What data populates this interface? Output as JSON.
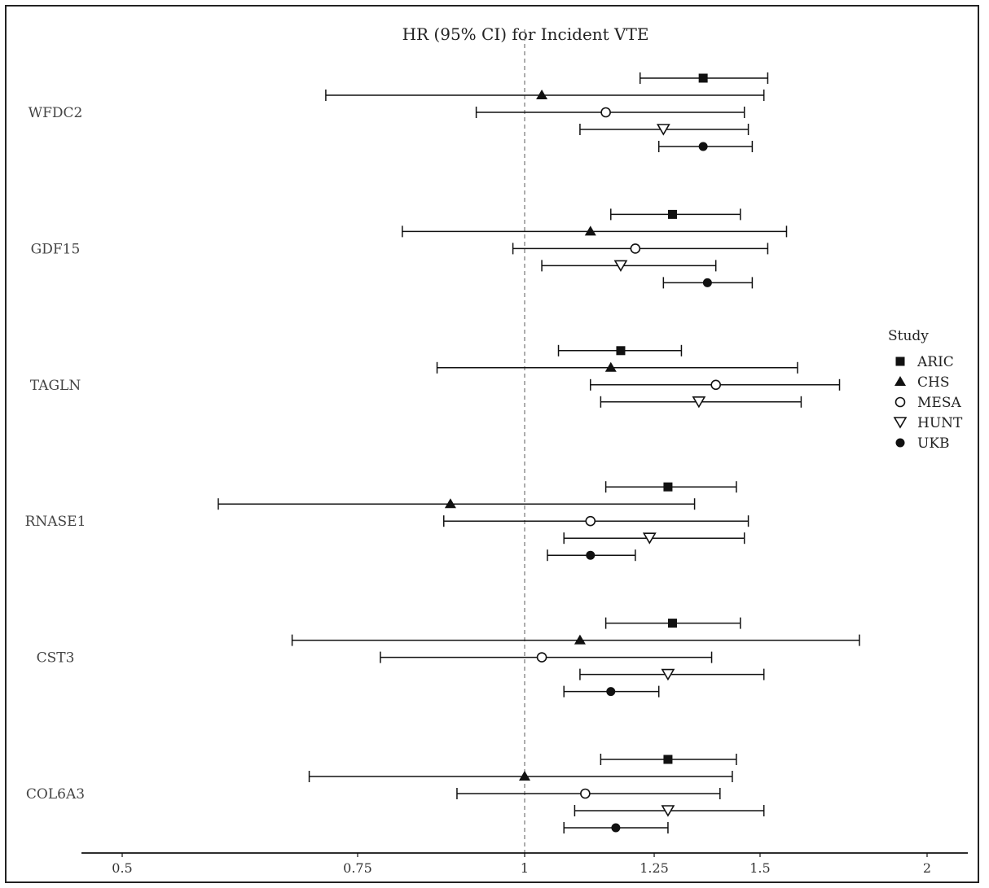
{
  "chart_data": {
    "type": "forest",
    "title": "HR (95% CI) for Incident VTE",
    "xlabel": "",
    "ylabel": "",
    "x_scale": "log",
    "xlim": [
      0.5,
      2.15
    ],
    "x_ticks": [
      0.5,
      0.75,
      1,
      1.25,
      1.5,
      2
    ],
    "x_tick_labels": [
      "0.5",
      "0.75",
      "1",
      "1.25",
      "1.5",
      "2"
    ],
    "reference_line": 1,
    "legend": {
      "title": "Study",
      "placement": "right",
      "entries": [
        {
          "name": "ARIC",
          "marker": "square-filled"
        },
        {
          "name": "CHS",
          "marker": "triangle-up-filled"
        },
        {
          "name": "MESA",
          "marker": "circle-open"
        },
        {
          "name": "HUNT",
          "marker": "triangle-down-open"
        },
        {
          "name": "UKB",
          "marker": "circle-filled"
        }
      ]
    },
    "groups": [
      {
        "label": "WFDC2",
        "rows": [
          {
            "study": "ARIC",
            "hr": 1.36,
            "lo": 1.22,
            "hi": 1.52
          },
          {
            "study": "CHS",
            "hr": 1.03,
            "lo": 0.71,
            "hi": 1.51
          },
          {
            "study": "MESA",
            "hr": 1.15,
            "lo": 0.92,
            "hi": 1.46
          },
          {
            "study": "HUNT",
            "hr": 1.27,
            "lo": 1.1,
            "hi": 1.47
          },
          {
            "study": "UKB",
            "hr": 1.36,
            "lo": 1.26,
            "hi": 1.48
          }
        ]
      },
      {
        "label": "GDF15",
        "rows": [
          {
            "study": "ARIC",
            "hr": 1.29,
            "lo": 1.16,
            "hi": 1.45
          },
          {
            "study": "CHS",
            "hr": 1.12,
            "lo": 0.81,
            "hi": 1.57
          },
          {
            "study": "MESA",
            "hr": 1.21,
            "lo": 0.98,
            "hi": 1.52
          },
          {
            "study": "HUNT",
            "hr": 1.18,
            "lo": 1.03,
            "hi": 1.39
          },
          {
            "study": "UKB",
            "hr": 1.37,
            "lo": 1.27,
            "hi": 1.48
          }
        ]
      },
      {
        "label": "TAGLN",
        "rows": [
          {
            "study": "ARIC",
            "hr": 1.18,
            "lo": 1.06,
            "hi": 1.31
          },
          {
            "study": "CHS",
            "hr": 1.16,
            "lo": 0.86,
            "hi": 1.6
          },
          {
            "study": "MESA",
            "hr": 1.39,
            "lo": 1.12,
            "hi": 1.72
          },
          {
            "study": "HUNT",
            "hr": 1.35,
            "lo": 1.14,
            "hi": 1.61
          }
        ]
      },
      {
        "label": "RNASE1",
        "rows": [
          {
            "study": "ARIC",
            "hr": 1.28,
            "lo": 1.15,
            "hi": 1.44
          },
          {
            "study": "CHS",
            "hr": 0.88,
            "lo": 0.59,
            "hi": 1.34
          },
          {
            "study": "MESA",
            "hr": 1.12,
            "lo": 0.87,
            "hi": 1.47
          },
          {
            "study": "HUNT",
            "hr": 1.24,
            "lo": 1.07,
            "hi": 1.46
          },
          {
            "study": "UKB",
            "hr": 1.12,
            "lo": 1.04,
            "hi": 1.21
          }
        ]
      },
      {
        "label": "CST3",
        "rows": [
          {
            "study": "ARIC",
            "hr": 1.29,
            "lo": 1.15,
            "hi": 1.45
          },
          {
            "study": "CHS",
            "hr": 1.1,
            "lo": 0.67,
            "hi": 1.78
          },
          {
            "study": "MESA",
            "hr": 1.03,
            "lo": 0.78,
            "hi": 1.38
          },
          {
            "study": "HUNT",
            "hr": 1.28,
            "lo": 1.1,
            "hi": 1.51
          },
          {
            "study": "UKB",
            "hr": 1.16,
            "lo": 1.07,
            "hi": 1.26
          }
        ]
      },
      {
        "label": "COL6A3",
        "rows": [
          {
            "study": "ARIC",
            "hr": 1.28,
            "lo": 1.14,
            "hi": 1.44
          },
          {
            "study": "CHS",
            "hr": 1.0,
            "lo": 0.69,
            "hi": 1.43
          },
          {
            "study": "MESA",
            "hr": 1.11,
            "lo": 0.89,
            "hi": 1.4
          },
          {
            "study": "HUNT",
            "hr": 1.28,
            "lo": 1.09,
            "hi": 1.51
          },
          {
            "study": "UKB",
            "hr": 1.17,
            "lo": 1.07,
            "hi": 1.28
          }
        ]
      }
    ]
  }
}
